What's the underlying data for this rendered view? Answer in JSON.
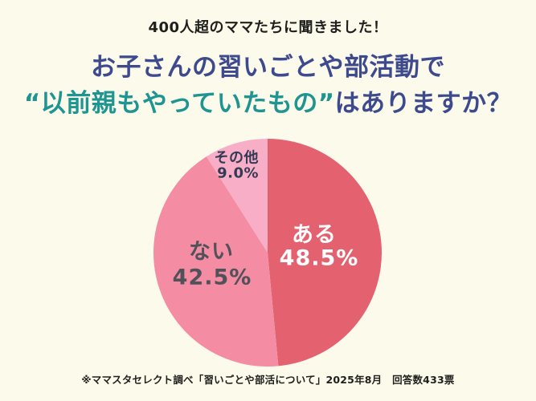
{
  "background_color": "#fcfaea",
  "header": {
    "lead": "400人超のママたちに聞きました！",
    "title_line1": "お子さんの習いごとや部活動で",
    "title_line2_highlight": "“以前親もやっていたもの”",
    "title_line2_rest": "はありますか？",
    "title_color": "#3d4a8e",
    "highlight_color": "#1e9590"
  },
  "chart_data": {
    "type": "pie",
    "title": "お子さんの習いごとや部活動で“以前親もやっていたもの”はありますか？",
    "start_angle_deg": -90,
    "direction": "clockwise",
    "unit": "%",
    "total_responses": 433,
    "segments": [
      {
        "label": "ある",
        "value": 48.5,
        "display": "48.5%",
        "color": "#e4626f",
        "label_color": "#ffffff"
      },
      {
        "label": "ない",
        "value": 42.5,
        "display": "42.5%",
        "color": "#f48ca4",
        "label_color": "#515159"
      },
      {
        "label": "その他",
        "value": 9.0,
        "display": "9.0%",
        "color": "#f9aec7",
        "label_color": "#333a56"
      }
    ]
  },
  "footer": {
    "source": "※ママスタセレクト調べ「習いごとや部活について」2025年8月　回答数433票"
  }
}
